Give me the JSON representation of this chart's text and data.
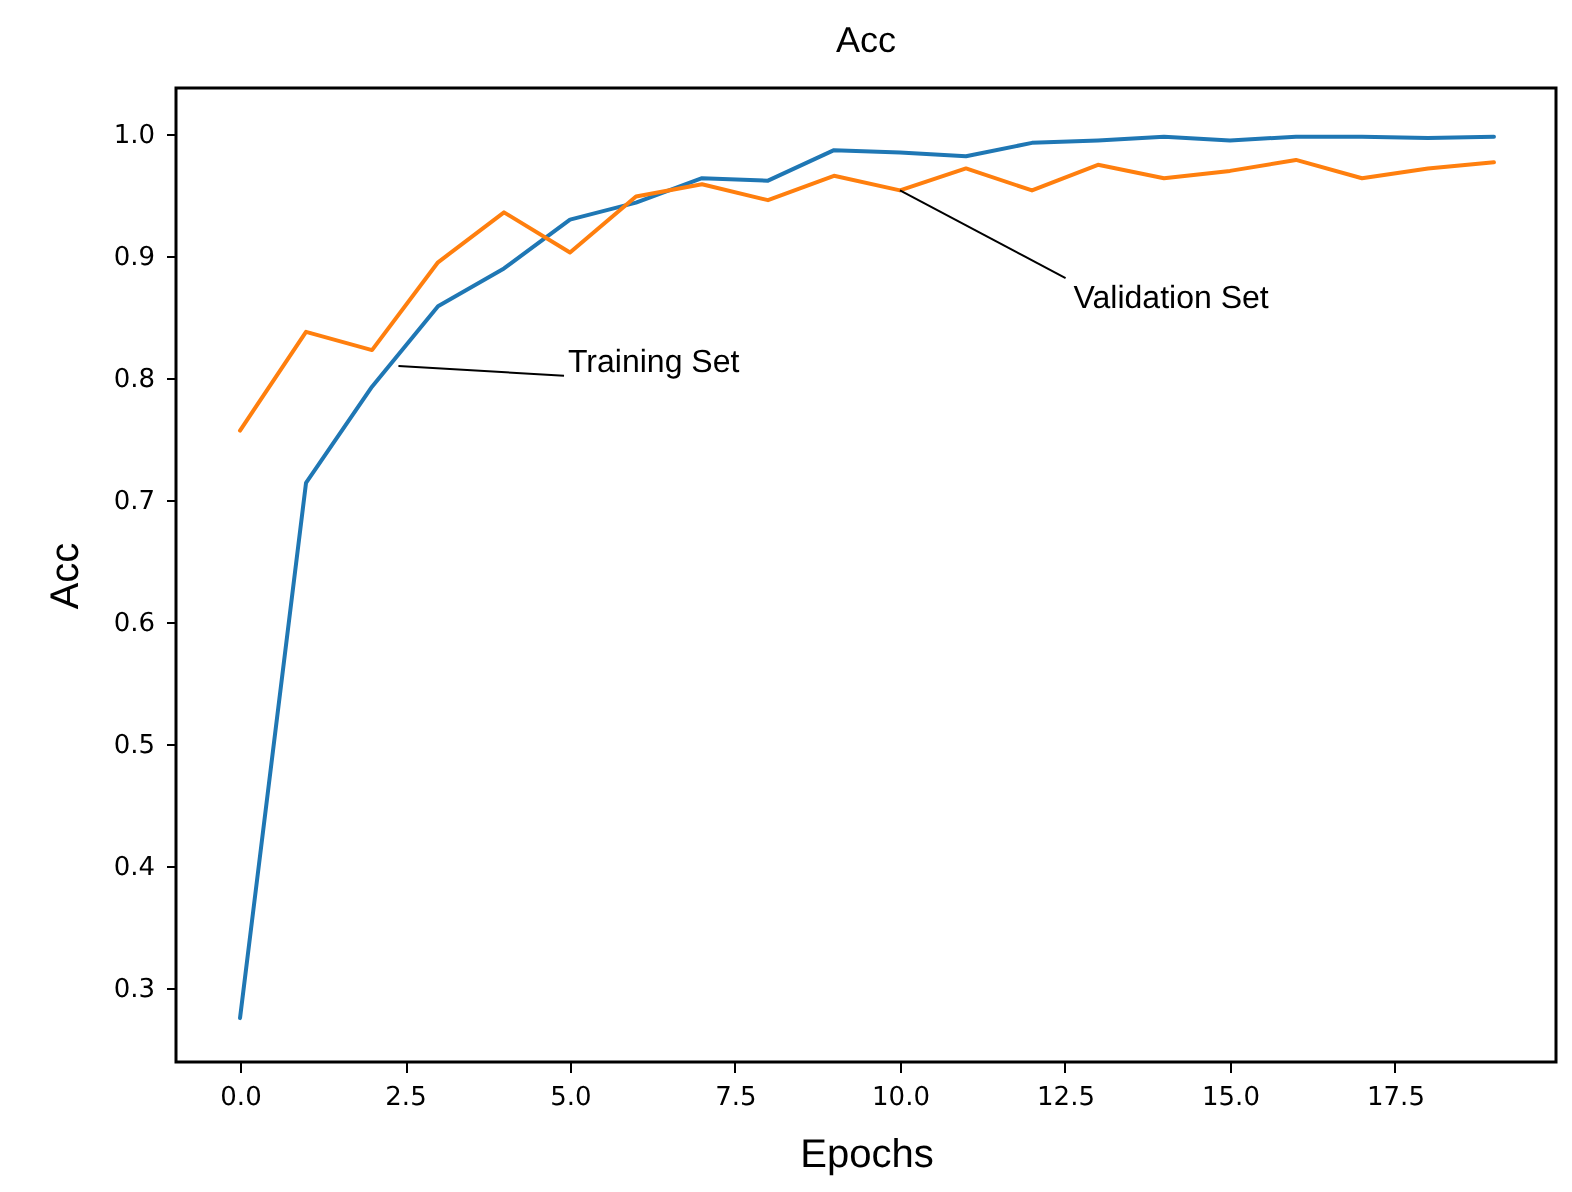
{
  "chart_data": {
    "type": "line",
    "title": "Acc",
    "xlabel": "Epochs",
    "ylabel": "Acc",
    "x": [
      0,
      1,
      2,
      3,
      4,
      5,
      6,
      7,
      8,
      9,
      10,
      11,
      12,
      13,
      14,
      15,
      16,
      17,
      18,
      19
    ],
    "series": [
      {
        "color": "#1f77b4",
        "values": [
          0.275,
          0.714,
          0.793,
          0.859,
          0.89,
          0.93,
          0.944,
          0.964,
          0.962,
          0.987,
          0.985,
          0.982,
          0.993,
          0.995,
          0.998,
          0.995,
          0.998,
          0.998,
          0.997,
          0.998
        ]
      },
      {
        "color": "#ff7f0e",
        "values": [
          0.757,
          0.838,
          0.823,
          0.895,
          0.936,
          0.903,
          0.949,
          0.959,
          0.946,
          0.966,
          0.954,
          0.972,
          0.954,
          0.975,
          0.964,
          0.97,
          0.979,
          0.964,
          0.972,
          0.977
        ]
      }
    ],
    "xlim": [
      -0.97,
      19.94
    ],
    "ylim": [
      0.239,
      1.038
    ],
    "xticks": [
      {
        "value": 0,
        "label": "0.0"
      },
      {
        "value": 2.5,
        "label": "2.5"
      },
      {
        "value": 5,
        "label": "5.0"
      },
      {
        "value": 7.5,
        "label": "7.5"
      },
      {
        "value": 10,
        "label": "10.0"
      },
      {
        "value": 12.5,
        "label": "12.5"
      },
      {
        "value": 15,
        "label": "15.0"
      },
      {
        "value": 17.5,
        "label": "17.5"
      }
    ],
    "yticks": [
      {
        "value": 0.3,
        "label": "0.3"
      },
      {
        "value": 0.4,
        "label": "0.4"
      },
      {
        "value": 0.5,
        "label": "0.5"
      },
      {
        "value": 0.6,
        "label": "0.6"
      },
      {
        "value": 0.7,
        "label": "0.7"
      },
      {
        "value": 0.8,
        "label": "0.8"
      },
      {
        "value": 0.9,
        "label": "0.9"
      },
      {
        "value": 1,
        "label": "1.0"
      }
    ],
    "annotations": [
      {
        "text": "Training Set",
        "x": 2.4,
        "y": 0.81
      },
      {
        "text": "Validation Set",
        "x": 10,
        "y": 0.954
      }
    ],
    "grid": false,
    "marker": "none",
    "line_style": "solid"
  }
}
